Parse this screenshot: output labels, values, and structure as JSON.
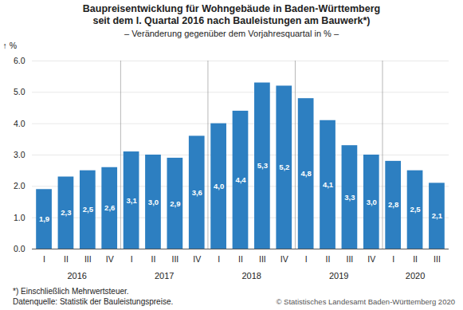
{
  "chart_data": {
    "type": "bar",
    "title": [
      "Baupreisentwicklung für Wohngebäude in Baden-Württemberg",
      "seit dem I. Quartal 2016 nach Bauleistungen am Bauwerk*)"
    ],
    "subtitle": "– Veränderung gegenüber dem Vorjahresquartal in % –",
    "ylabel": "%",
    "categories": [
      "I",
      "II",
      "III",
      "IV",
      "I",
      "II",
      "III",
      "IV",
      "I",
      "II",
      "III",
      "IV",
      "I",
      "II",
      "III",
      "IV",
      "I",
      "II",
      "III"
    ],
    "category_groups": [
      "2016",
      "2016",
      "2016",
      "2016",
      "2017",
      "2017",
      "2017",
      "2017",
      "2018",
      "2018",
      "2018",
      "2018",
      "2019",
      "2019",
      "2019",
      "2019",
      "2020",
      "2020",
      "2020"
    ],
    "values": [
      1.9,
      2.3,
      2.5,
      2.6,
      3.1,
      3.0,
      2.9,
      3.6,
      4.0,
      4.4,
      5.3,
      5.2,
      4.8,
      4.1,
      3.3,
      3.0,
      2.8,
      2.5,
      2.1
    ],
    "value_labels": [
      "1,9",
      "2,3",
      "2,5",
      "2,6",
      "3,1",
      "3,0",
      "2,9",
      "3,6",
      "4,0",
      "4,4",
      "5,3",
      "5,2",
      "4,8",
      "4,1",
      "3,3",
      "3,0",
      "2,8",
      "2,5",
      "2,1"
    ],
    "data_labels": true,
    "color": "#2d7fc1",
    "ylim": [
      0,
      6
    ],
    "yticks": [
      0,
      1,
      2,
      3,
      4,
      5,
      6
    ],
    "grid": true,
    "annotations": [
      "*) Einschließlich Mehrwertsteuer.",
      "Datenquelle: Statistik der Bauleistungspreise.",
      "© Statistisches Landesamt Baden-Württemberg 2020"
    ]
  }
}
